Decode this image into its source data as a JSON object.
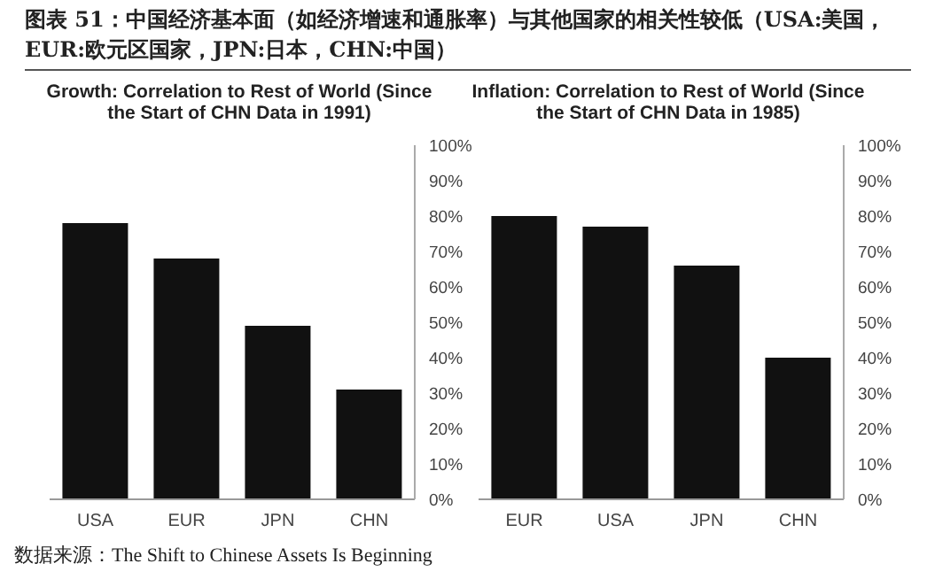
{
  "chart_data": [
    {
      "type": "bar",
      "title": "Growth: Correlation to Rest of World (Since the Start of CHN Data in 1991)",
      "categories": [
        "USA",
        "EUR",
        "JPN",
        "CHN"
      ],
      "values": [
        78,
        68,
        49,
        31
      ],
      "color": "#111111",
      "ylim": [
        0,
        100
      ],
      "yticks": [
        {
          "value": 0,
          "label": "0%"
        },
        {
          "value": 10,
          "label": "10%"
        },
        {
          "value": 20,
          "label": "20%"
        },
        {
          "value": 30,
          "label": "30%"
        },
        {
          "value": 40,
          "label": "40%"
        },
        {
          "value": 50,
          "label": "50%"
        },
        {
          "value": 60,
          "label": "60%"
        },
        {
          "value": 70,
          "label": "70%"
        },
        {
          "value": 80,
          "label": "80%"
        },
        {
          "value": 90,
          "label": "90%"
        },
        {
          "value": 100,
          "label": "100%"
        }
      ],
      "grid": false,
      "annotations": [
        "图表 51：中国经济基本面（如经济增速和通胀率）与其他国家的相关性较低（USA:美国，EUR:欧元区国家，JPN:日本，CHN:中国）",
        "数据来源：The Shift to Chinese Assets Is Beginning"
      ]
    },
    {
      "type": "bar",
      "title": "Inflation: Correlation to Rest of World (Since the Start of CHN Data in 1985)",
      "categories": [
        "EUR",
        "USA",
        "JPN",
        "CHN"
      ],
      "values": [
        80,
        77,
        66,
        40
      ],
      "color": "#111111",
      "ylim": [
        0,
        100
      ],
      "yticks": [
        {
          "value": 0,
          "label": "0%"
        },
        {
          "value": 10,
          "label": "10%"
        },
        {
          "value": 20,
          "label": "20%"
        },
        {
          "value": 30,
          "label": "30%"
        },
        {
          "value": 40,
          "label": "40%"
        },
        {
          "value": 50,
          "label": "50%"
        },
        {
          "value": 60,
          "label": "60%"
        },
        {
          "value": 70,
          "label": "70%"
        },
        {
          "value": 80,
          "label": "80%"
        },
        {
          "value": 90,
          "label": "90%"
        },
        {
          "value": 100,
          "label": "100%"
        }
      ],
      "grid": false
    }
  ]
}
